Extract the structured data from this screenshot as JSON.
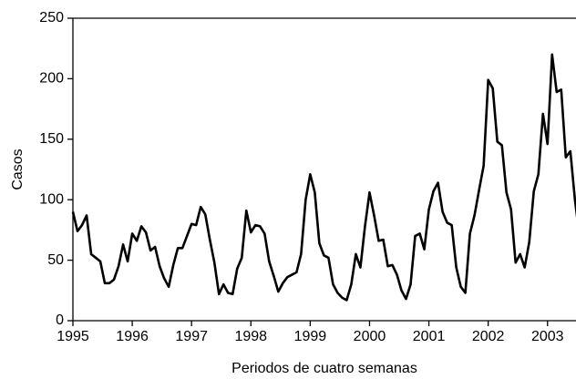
{
  "chart_data": {
    "type": "line",
    "xlabel": "Periodos de cuatro semanas",
    "ylabel": "Casos",
    "x": [
      1995.0,
      1995.077,
      1995.154,
      1995.231,
      1995.308,
      1995.385,
      1995.462,
      1995.538,
      1995.615,
      1995.692,
      1995.769,
      1995.846,
      1995.923,
      1996.0,
      1996.077,
      1996.154,
      1996.231,
      1996.308,
      1996.385,
      1996.462,
      1996.538,
      1996.615,
      1996.692,
      1996.769,
      1996.846,
      1996.923,
      1997.0,
      1997.077,
      1997.154,
      1997.231,
      1997.308,
      1997.385,
      1997.462,
      1997.538,
      1997.615,
      1997.692,
      1997.769,
      1997.846,
      1997.923,
      1998.0,
      1998.077,
      1998.154,
      1998.231,
      1998.308,
      1998.385,
      1998.462,
      1998.538,
      1998.615,
      1998.692,
      1998.769,
      1998.846,
      1998.923,
      1999.0,
      1999.077,
      1999.154,
      1999.231,
      1999.308,
      1999.385,
      1999.462,
      1999.538,
      1999.615,
      1999.692,
      1999.769,
      1999.846,
      1999.923,
      2000.0,
      2000.077,
      2000.154,
      2000.231,
      2000.308,
      2000.385,
      2000.462,
      2000.538,
      2000.615,
      2000.692,
      2000.769,
      2000.846,
      2000.923,
      2001.0,
      2001.077,
      2001.154,
      2001.231,
      2001.308,
      2001.385,
      2001.462,
      2001.538,
      2001.615,
      2001.692,
      2001.769,
      2001.846,
      2001.923,
      2002.0,
      2002.077,
      2002.154,
      2002.231,
      2002.308,
      2002.385,
      2002.462,
      2002.538,
      2002.615,
      2002.692,
      2002.769,
      2002.846,
      2002.923,
      2003.0,
      2003.077,
      2003.154,
      2003.231,
      2003.308,
      2003.385,
      2003.462,
      2003.538
    ],
    "series": [
      {
        "name": "Casos",
        "color": "#000000",
        "values": [
          90,
          74,
          79,
          87,
          55,
          52,
          49,
          31,
          31,
          34,
          45,
          63,
          49,
          72,
          66,
          78,
          73,
          58,
          61,
          45,
          35,
          28,
          46,
          60,
          60,
          70,
          80,
          79,
          94,
          88,
          67,
          48,
          22,
          30,
          23,
          22,
          43,
          52,
          91,
          73,
          79,
          78,
          72,
          49,
          37,
          24,
          31,
          36,
          38,
          40,
          55,
          100,
          121,
          106,
          64,
          54,
          52,
          30,
          23,
          19,
          17,
          30,
          55,
          44,
          78,
          106,
          87,
          66,
          67,
          45,
          46,
          38,
          25,
          18,
          30,
          70,
          72,
          59,
          92,
          107,
          114,
          90,
          81,
          79,
          44,
          28,
          23,
          72,
          87,
          108,
          128,
          199,
          192,
          148,
          145,
          106,
          92,
          48,
          55,
          44,
          65,
          107,
          121,
          171,
          146,
          220,
          189,
          191,
          135,
          140,
          100,
          70
        ]
      }
    ],
    "xlim": [
      1995,
      2003.48
    ],
    "xticks": [
      1995,
      1996,
      1997,
      1998,
      1999,
      2000,
      2001,
      2002,
      2003
    ],
    "ylim": [
      0,
      250
    ],
    "yticks": [
      0,
      50,
      100,
      150,
      200,
      250
    ]
  }
}
